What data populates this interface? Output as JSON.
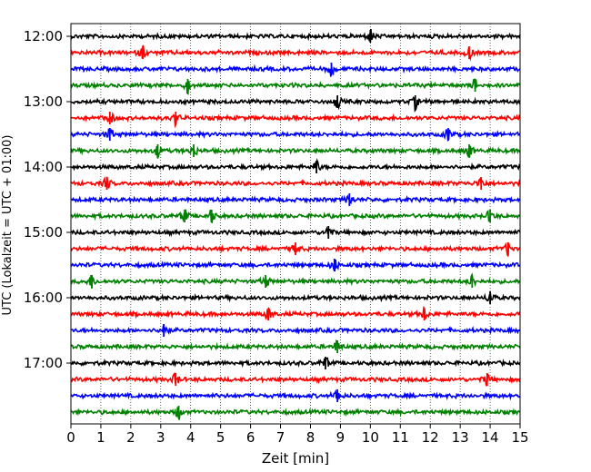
{
  "chart_data": {
    "type": "line",
    "subtype": "helicorder",
    "xlabel": "Zeit  [min]",
    "ylabel": "UTC (Lokalzeit = UTC + 01:00)",
    "xlim": [
      0,
      15
    ],
    "x_ticks": [
      "0",
      "1",
      "2",
      "3",
      "4",
      "5",
      "6",
      "7",
      "8",
      "9",
      "10",
      "11",
      "12",
      "13",
      "14",
      "15"
    ],
    "y_tick_labels": [
      "12:00",
      "13:00",
      "14:00",
      "15:00",
      "16:00",
      "17:00"
    ],
    "rows_per_label": 4,
    "row_colors": [
      "#000000",
      "#ff0000",
      "#0000ff",
      "#008000"
    ],
    "grid": "vertical-dotted",
    "traces": [
      {
        "start": "12:00",
        "events": [
          10.0
        ]
      },
      {
        "start": "12:15",
        "events": [
          2.4,
          13.3
        ]
      },
      {
        "start": "12:30",
        "events": [
          8.7
        ]
      },
      {
        "start": "12:45",
        "events": [
          3.9,
          13.5
        ]
      },
      {
        "start": "13:00",
        "events": [
          8.9,
          11.5
        ]
      },
      {
        "start": "13:15",
        "events": [
          1.3,
          3.5
        ]
      },
      {
        "start": "13:30",
        "events": [
          1.3,
          12.6
        ]
      },
      {
        "start": "13:45",
        "events": [
          2.9,
          4.1,
          13.3
        ]
      },
      {
        "start": "14:00",
        "events": [
          8.2
        ]
      },
      {
        "start": "14:15",
        "events": [
          1.2,
          13.7
        ]
      },
      {
        "start": "14:30",
        "events": [
          9.3
        ]
      },
      {
        "start": "14:45",
        "events": [
          3.8,
          4.7,
          14.0
        ]
      },
      {
        "start": "15:00",
        "events": [
          8.6
        ]
      },
      {
        "start": "15:15",
        "events": [
          7.5,
          14.6
        ]
      },
      {
        "start": "15:30",
        "events": [
          8.8
        ]
      },
      {
        "start": "15:45",
        "events": [
          0.7,
          6.5,
          13.4
        ]
      },
      {
        "start": "16:00",
        "events": [
          14.0
        ]
      },
      {
        "start": "16:15",
        "events": [
          6.6,
          11.8
        ]
      },
      {
        "start": "16:30",
        "events": [
          3.1
        ]
      },
      {
        "start": "16:45",
        "events": [
          8.9
        ]
      },
      {
        "start": "17:00",
        "events": [
          8.5
        ]
      },
      {
        "start": "17:15",
        "events": [
          3.5,
          13.9
        ]
      },
      {
        "start": "17:30",
        "events": [
          8.9
        ]
      },
      {
        "start": "17:45",
        "events": [
          3.6
        ]
      }
    ]
  }
}
